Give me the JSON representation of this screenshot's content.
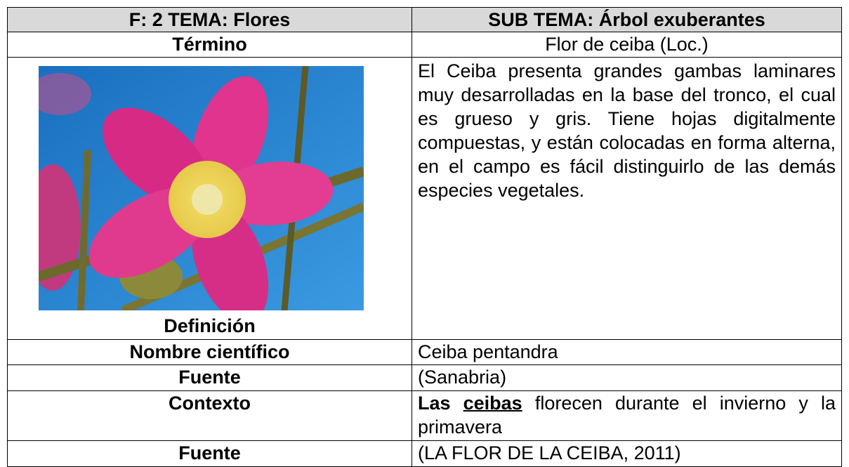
{
  "header": {
    "left": "F: 2  TEMA: Flores",
    "right": "SUB TEMA: Árbol exuberantes"
  },
  "term": {
    "label": "Término",
    "value": "Flor de ceiba (Loc.)"
  },
  "definition": {
    "label": "Definición",
    "text": "El Ceiba presenta grandes gambas laminares muy desarrolladas en la base del tronco, el cual es grueso y gris. Tiene hojas digitalmente compuestas, y están colocadas en forma alterna, en el campo es fácil distinguirlo de las demás especies vegetales."
  },
  "scientific_name": {
    "label": "Nombre científico",
    "value": "Ceiba pentandra"
  },
  "source1": {
    "label": "Fuente",
    "value": "(Sanabria)"
  },
  "context": {
    "label": "Contexto",
    "lead": "Las",
    "term": "ceibas",
    "rest": "florecen durante el invierno y la primavera"
  },
  "source2": {
    "label": "Fuente",
    "value": "(LA FLOR DE LA CEIBA, 2011)"
  }
}
